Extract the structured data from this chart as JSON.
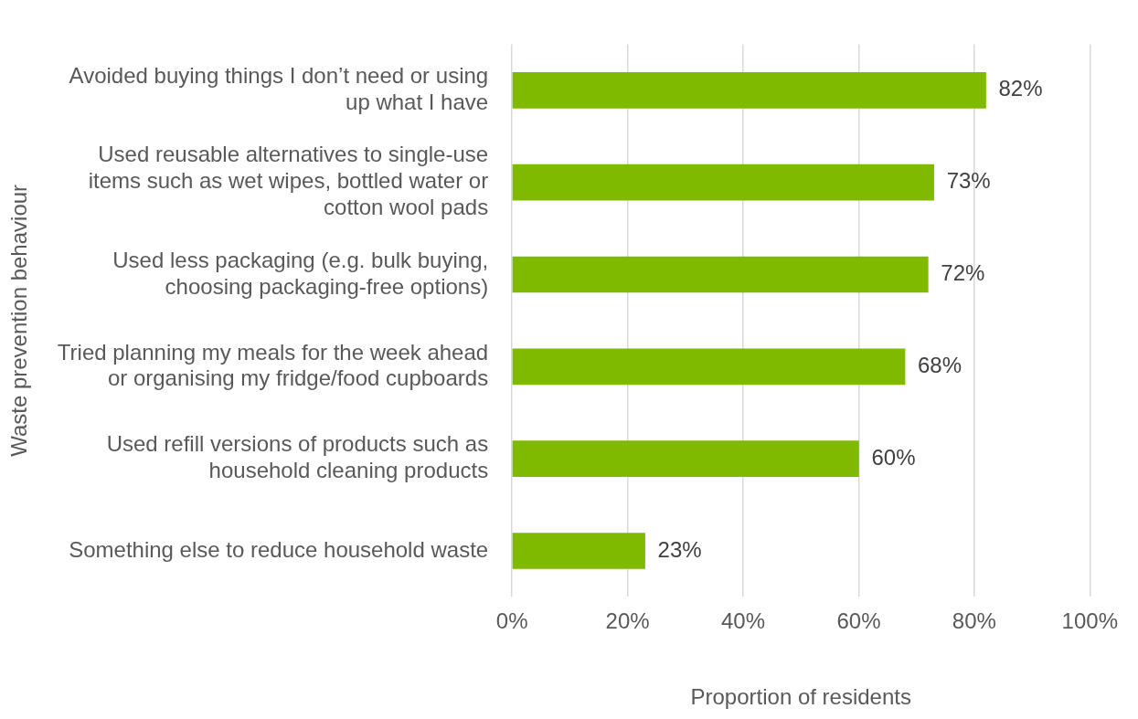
{
  "chart_data": {
    "type": "bar",
    "orientation": "horizontal",
    "xlabel": "Proportion of residents",
    "ylabel": "Waste prevention behaviour",
    "categories": [
      "Avoided buying things I don’t need or using up what I have",
      "Used reusable alternatives to single-use items such as wet wipes, bottled water or cotton wool pads",
      "Used less packaging (e.g. bulk buying, choosing packaging-free options)",
      "Tried planning my meals for the week ahead or organising my fridge/food cupboards",
      "Used refill versions of products such as household cleaning products",
      "Something else to reduce household waste"
    ],
    "values": [
      82,
      73,
      72,
      68,
      60,
      23
    ],
    "value_labels": [
      "82%",
      "73%",
      "72%",
      "68%",
      "60%",
      "23%"
    ],
    "color": "#7fba00",
    "xlim": [
      0,
      100
    ],
    "xticks": [
      {
        "value": 0,
        "label": "0%"
      },
      {
        "value": 20,
        "label": "20%"
      },
      {
        "value": 40,
        "label": "40%"
      },
      {
        "value": 60,
        "label": "60%"
      },
      {
        "value": 80,
        "label": "80%"
      },
      {
        "value": 100,
        "label": "100%"
      }
    ],
    "grid": "x",
    "legend": false
  }
}
